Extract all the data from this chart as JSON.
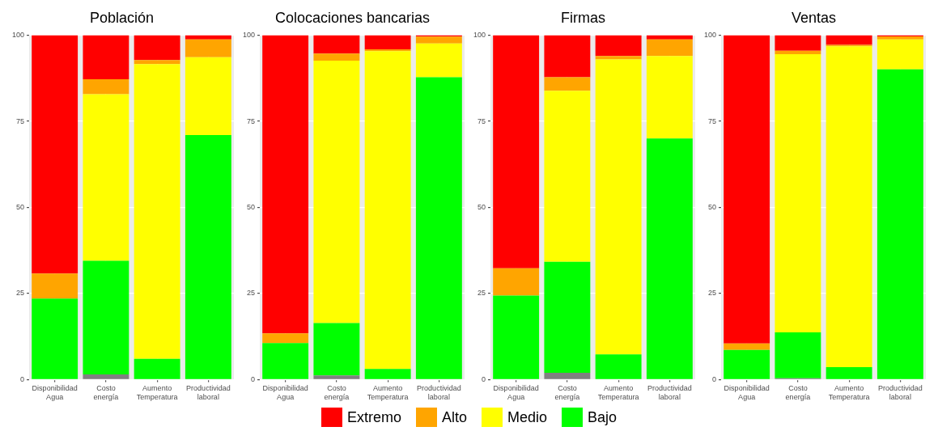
{
  "chart_data": [
    {
      "type": "bar",
      "title": "Población",
      "stacked": true,
      "grid": true,
      "legend": "bottom",
      "categories": [
        "Disponibilidad Agua",
        "Costo energía",
        "Aumento Temperatura",
        "Productividad laboral"
      ],
      "ylim": [
        0,
        100
      ],
      "yticks": [
        0,
        25,
        50,
        75,
        100
      ],
      "series": [
        {
          "color": "#808080",
          "values": [
            0,
            1.5,
            0,
            0
          ]
        },
        {
          "name": "Bajo",
          "color": "#00ff00",
          "values": [
            23.5,
            33,
            6,
            71
          ]
        },
        {
          "name": "Medio",
          "color": "#ffff00",
          "values": [
            0,
            48.4,
            85.6,
            22.6
          ]
        },
        {
          "name": "Alto",
          "color": "#ffa500",
          "values": [
            7.3,
            4.3,
            1.2,
            5.2
          ]
        },
        {
          "name": "Extremo",
          "color": "#ff0000",
          "values": [
            69.2,
            12.8,
            7.2,
            1.2
          ]
        }
      ]
    },
    {
      "type": "bar",
      "title": "Colocaciones bancarias",
      "stacked": true,
      "grid": true,
      "categories": [
        "Disponibilidad Agua",
        "Costo energía",
        "Aumento Temperatura",
        "Productividad laboral"
      ],
      "ylim": [
        0,
        100
      ],
      "yticks": [
        0,
        25,
        50,
        75,
        100
      ],
      "series": [
        {
          "color": "#808080",
          "values": [
            0,
            1.2,
            0,
            0
          ]
        },
        {
          "color": "#00ff00",
          "values": [
            10.6,
            15.2,
            3.1,
            87.8
          ]
        },
        {
          "color": "#ffff00",
          "values": [
            0,
            76.2,
            92.3,
            9.8
          ]
        },
        {
          "color": "#ffa500",
          "values": [
            2.8,
            2.1,
            0.5,
            2
          ]
        },
        {
          "color": "#ff0000",
          "values": [
            86.6,
            5.3,
            4.1,
            0.4
          ]
        }
      ]
    },
    {
      "type": "bar",
      "title": "Firmas",
      "stacked": true,
      "grid": true,
      "categories": [
        "Disponibilidad Agua",
        "Costo energía",
        "Aumento Temperatura",
        "Productividad laboral"
      ],
      "ylim": [
        0,
        100
      ],
      "yticks": [
        0,
        25,
        50,
        75,
        100
      ],
      "series": [
        {
          "color": "#808080",
          "values": [
            0,
            2,
            0,
            0
          ]
        },
        {
          "color": "#00ff00",
          "values": [
            24.4,
            32.2,
            7.3,
            70
          ]
        },
        {
          "color": "#ffff00",
          "values": [
            0,
            49.7,
            85.7,
            24
          ]
        },
        {
          "color": "#ffa500",
          "values": [
            7.9,
            3.9,
            1,
            4.8
          ]
        },
        {
          "color": "#ff0000",
          "values": [
            67.7,
            12.2,
            6,
            1.2
          ]
        }
      ]
    },
    {
      "type": "bar",
      "title": "Ventas",
      "stacked": true,
      "grid": true,
      "categories": [
        "Disponibilidad Agua",
        "Costo energía",
        "Aumento Temperatura",
        "Productividad laboral"
      ],
      "ylim": [
        0,
        100
      ],
      "yticks": [
        0,
        25,
        50,
        75,
        100
      ],
      "series": [
        {
          "color": "#808080",
          "values": [
            0,
            0.4,
            0,
            0
          ]
        },
        {
          "color": "#00ff00",
          "values": [
            8.6,
            13.3,
            3.6,
            90.1
          ]
        },
        {
          "color": "#ffff00",
          "values": [
            0,
            80.8,
            93.2,
            8.7
          ]
        },
        {
          "color": "#ffa500",
          "values": [
            1.9,
            1,
            0.4,
            0.9
          ]
        },
        {
          "color": "#ff0000",
          "values": [
            89.5,
            4.5,
            2.8,
            0.3
          ]
        }
      ]
    }
  ]
}
